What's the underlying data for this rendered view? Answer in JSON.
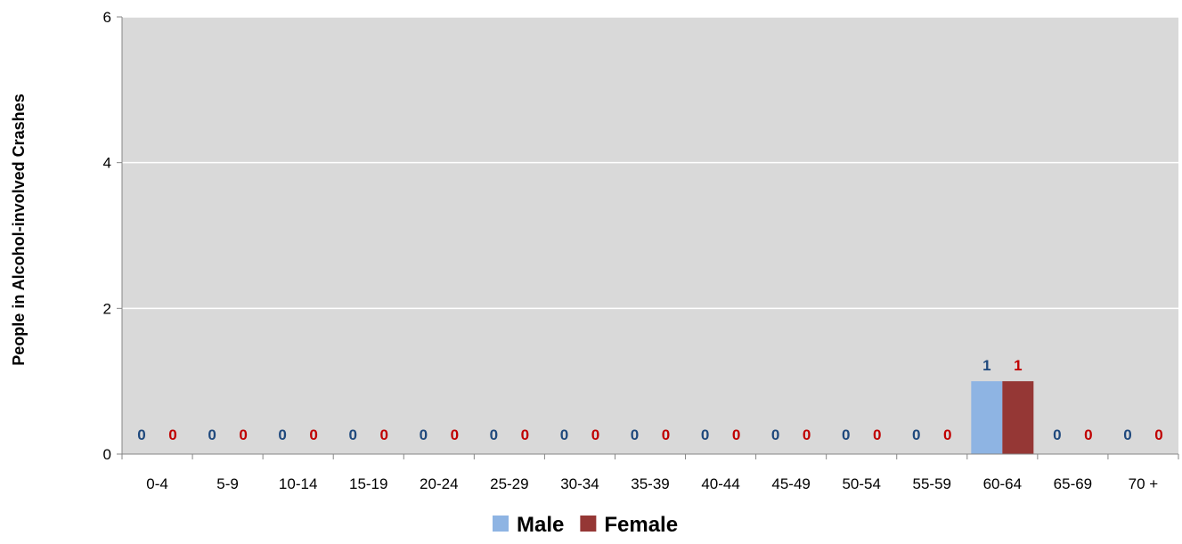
{
  "chart_data": {
    "type": "bar",
    "title": "",
    "xlabel": "",
    "ylabel": "People in Alcohol-involved Crashes",
    "ylim": [
      0,
      6
    ],
    "yticks": [
      0,
      2,
      4,
      6
    ],
    "grid": true,
    "legend_position": "bottom",
    "categories": [
      "0-4",
      "5-9",
      "10-14",
      "15-19",
      "20-24",
      "25-29",
      "30-34",
      "35-39",
      "40-44",
      "45-49",
      "50-54",
      "55-59",
      "60-64",
      "65-69",
      "70 +"
    ],
    "series": [
      {
        "name": "Male",
        "color": "#8EB4E3",
        "label_color": "#1F497D",
        "values": [
          0,
          0,
          0,
          0,
          0,
          0,
          0,
          0,
          0,
          0,
          0,
          0,
          1,
          0,
          0
        ]
      },
      {
        "name": "Female",
        "color": "#953735",
        "label_color": "#C00000",
        "values": [
          0,
          0,
          0,
          0,
          0,
          0,
          0,
          0,
          0,
          0,
          0,
          0,
          1,
          0,
          0
        ]
      }
    ],
    "plot_background": "#D9D9D9",
    "gridline_color": "#FFFFFF"
  }
}
